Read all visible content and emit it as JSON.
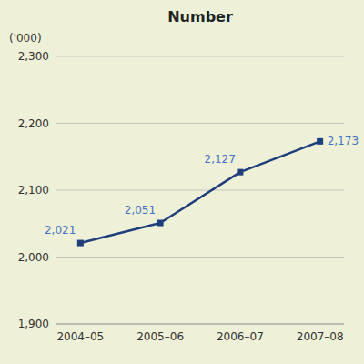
{
  "chart_data": {
    "type": "line",
    "title": "Number",
    "ylabel": "('000)",
    "categories": [
      "2004–05",
      "2005–06",
      "2006–07",
      "2007–08"
    ],
    "values": [
      2021,
      2051,
      2127,
      2173
    ],
    "value_labels": [
      "2,021",
      "2,051",
      "2,127",
      "2,173"
    ],
    "data_labels": true,
    "color": "#1f3e7c",
    "marker": "square",
    "ylim": [
      1900,
      2300
    ],
    "yticks": [
      {
        "value": 1900,
        "label": "1,900"
      },
      {
        "value": 2000,
        "label": "2,000"
      },
      {
        "value": 2100,
        "label": "2,100"
      },
      {
        "value": 2200,
        "label": "2,200"
      },
      {
        "value": 2300,
        "label": "2,300"
      }
    ],
    "grid": true
  }
}
